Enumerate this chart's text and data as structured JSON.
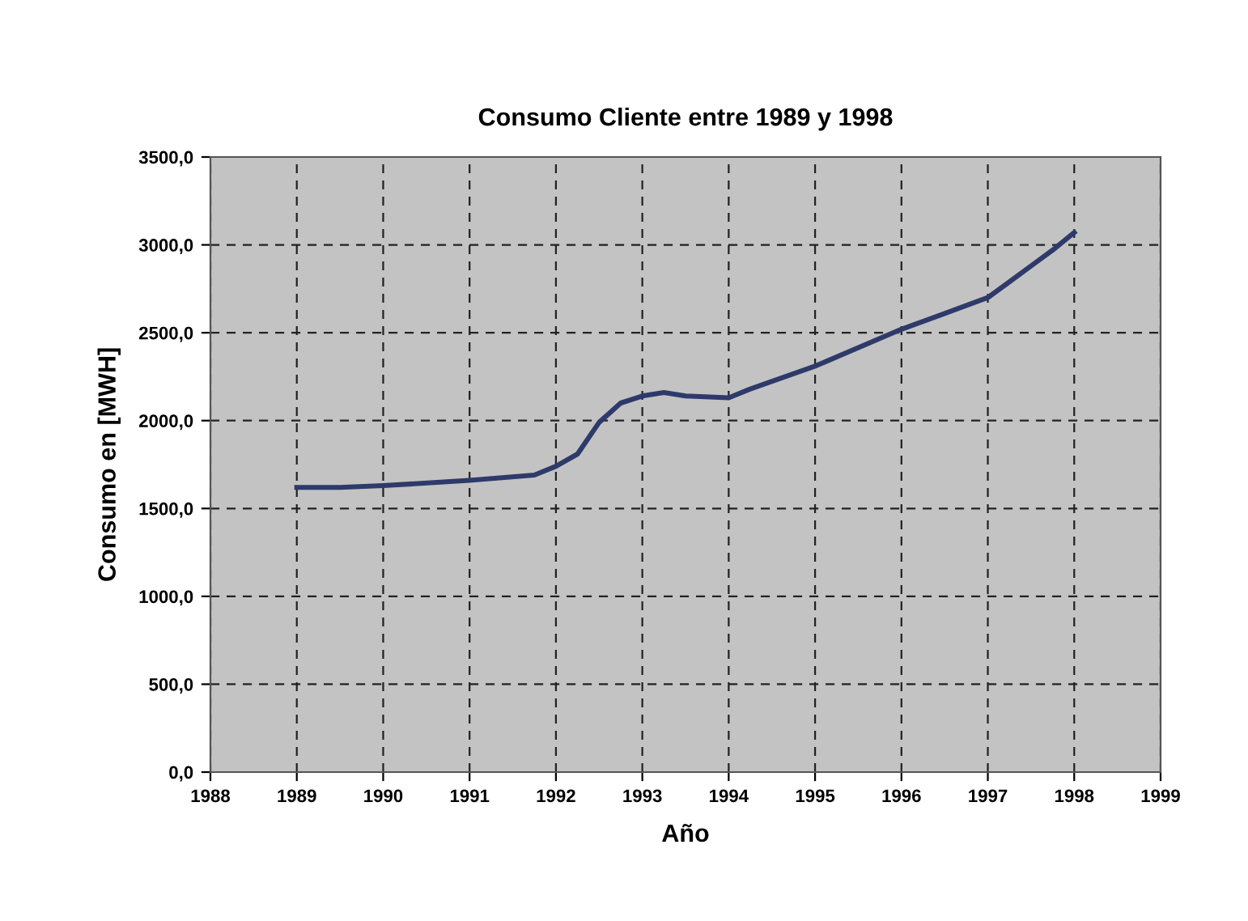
{
  "chart_data": {
    "type": "line",
    "title": "Consumo Cliente entre 1989 y 1998",
    "xlabel": "Año",
    "ylabel": "Consumo en [MWH]",
    "x": [
      1989,
      1989.5,
      1990,
      1991,
      1991.75,
      1992,
      1992.25,
      1992.5,
      1992.75,
      1993,
      1993.25,
      1993.5,
      1994,
      1994.25,
      1995,
      1996,
      1996.5,
      1997,
      1997.25,
      1997.5,
      1997.75,
      1998
    ],
    "series": [
      {
        "color": "#2e3a6a",
        "values": [
          1620,
          1620,
          1630,
          1660,
          1690,
          1740,
          1810,
          1990,
          2100,
          2140,
          2160,
          2140,
          2130,
          2180,
          2310,
          2520,
          2610,
          2700,
          2790,
          2880,
          2970,
          3070
        ]
      }
    ],
    "xlim": [
      1988,
      1999
    ],
    "xticks": [
      1988,
      1989,
      1990,
      1991,
      1992,
      1993,
      1994,
      1995,
      1996,
      1997,
      1998,
      1999
    ],
    "ylim": [
      0,
      3500
    ],
    "yticks": [
      {
        "value": 0,
        "label": "0,0"
      },
      {
        "value": 500,
        "label": "500,0"
      },
      {
        "value": 1000,
        "label": "1000,0"
      },
      {
        "value": 1500,
        "label": "1500,0"
      },
      {
        "value": 2000,
        "label": "2000,0"
      },
      {
        "value": 2500,
        "label": "2500,0"
      },
      {
        "value": 3000,
        "label": "3000,0"
      },
      {
        "value": 3500,
        "label": "3500,0"
      }
    ],
    "grid": true,
    "line_style": "solid"
  }
}
